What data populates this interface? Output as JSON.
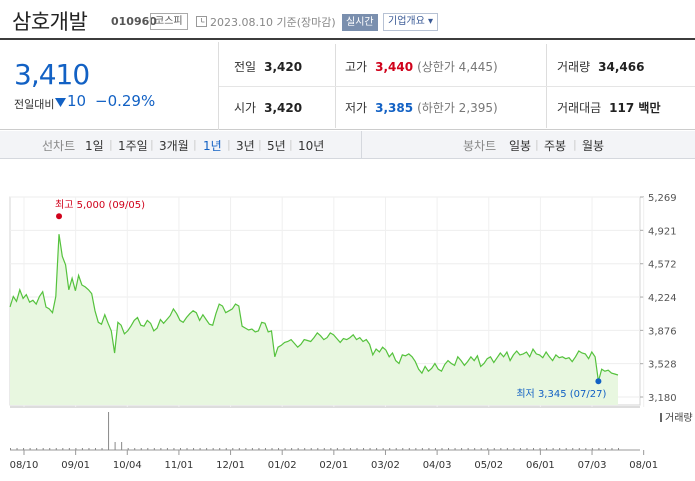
{
  "header": {
    "name": "삼호개발",
    "code": "010960",
    "market": "코스피",
    "date": "2023.08.10 기준(장마감)",
    "realtime": "실시간",
    "company_overview": "기업개요 ▾"
  },
  "quote": {
    "price": "3,410",
    "change_label": "전일대비",
    "change": "10",
    "change_pct": "−0.29%",
    "prev_label": "전일",
    "prev": "3,420",
    "open_label": "시가",
    "open": "3,420",
    "high_label": "고가",
    "high": "3,440",
    "upper_limit": "(상한가 4,445)",
    "low_label": "저가",
    "low": "3,385",
    "lower_limit": "(하한가 2,395)",
    "volume_label": "거래량",
    "volume": "34,466",
    "amount_label": "거래대금",
    "amount": "117 백만"
  },
  "periods": {
    "line_label": "선차트",
    "items": [
      "1일",
      "1주일",
      "3개월",
      "1년",
      "3년",
      "5년",
      "10년"
    ],
    "selected": "1년",
    "candle_label": "봉차트",
    "candle_items": [
      "일봉",
      "주봉",
      "월봉"
    ]
  },
  "colors": {
    "line": "#55c23d",
    "fill": "#e8f7e0",
    "down": "#1261c4",
    "up": "#d0021b"
  },
  "chart_data": {
    "type": "area",
    "title": "",
    "y_ticks": [
      "5,269",
      "4,921",
      "4,572",
      "4,224",
      "3,876",
      "3,528",
      "3,180"
    ],
    "ylim": [
      3180,
      5269
    ],
    "x_labels": [
      "08/10",
      "09/01",
      "10/04",
      "11/01",
      "12/01",
      "01/02",
      "02/01",
      "03/02",
      "04/03",
      "05/02",
      "06/01",
      "07/03",
      "08/01"
    ],
    "high_annotation": "최고 5,000 (09/05)",
    "low_annotation": "최저 3,345 (07/27)",
    "volume_label": "거래량",
    "series": [
      {
        "values": [
          4120,
          4230,
          4180,
          4300,
          4210,
          4250,
          4170,
          4190,
          4150,
          4230,
          4280,
          4120,
          4100,
          4060,
          4230,
          4880,
          4650,
          4560,
          4300,
          4420,
          4290,
          4450,
          4350,
          4330,
          4300,
          4260,
          4080,
          3960,
          3940,
          4040,
          3950,
          3870,
          3640,
          3960,
          3930,
          3840,
          3870,
          3920,
          3980,
          4010,
          3930,
          3920,
          3980,
          3950,
          3870,
          3900,
          3990,
          3950,
          3990,
          4030,
          4100,
          4050,
          3980,
          3960,
          4010,
          4050,
          4080,
          4060,
          3980,
          4040,
          3990,
          3940,
          3930,
          4050,
          4150,
          4130,
          4060,
          4080,
          4100,
          4150,
          4130,
          3920,
          3900,
          3880,
          3890,
          3860,
          3870,
          3960,
          3950,
          3860,
          3870,
          3600,
          3700,
          3720,
          3750,
          3760,
          3780,
          3740,
          3700,
          3730,
          3780,
          3770,
          3760,
          3800,
          3850,
          3820,
          3780,
          3800,
          3850,
          3830,
          3790,
          3750,
          3790,
          3780,
          3800,
          3830,
          3780,
          3800,
          3760,
          3780,
          3730,
          3620,
          3680,
          3650,
          3700,
          3670,
          3600,
          3640,
          3560,
          3530,
          3620,
          3610,
          3630,
          3600,
          3550,
          3470,
          3430,
          3500,
          3450,
          3480,
          3530,
          3470,
          3450,
          3520,
          3560,
          3530,
          3510,
          3600,
          3560,
          3510,
          3550,
          3600,
          3560,
          3610,
          3500,
          3530,
          3580,
          3600,
          3540,
          3590,
          3640,
          3600,
          3650,
          3560,
          3620,
          3660,
          3620,
          3630,
          3650,
          3600,
          3680,
          3630,
          3620,
          3590,
          3650,
          3600,
          3560,
          3620,
          3590,
          3600,
          3580,
          3590,
          3550,
          3600,
          3660,
          3640,
          3630,
          3580,
          3650,
          3600,
          3345,
          3470,
          3450,
          3460,
          3430,
          3420,
          3410
        ]
      }
    ]
  }
}
